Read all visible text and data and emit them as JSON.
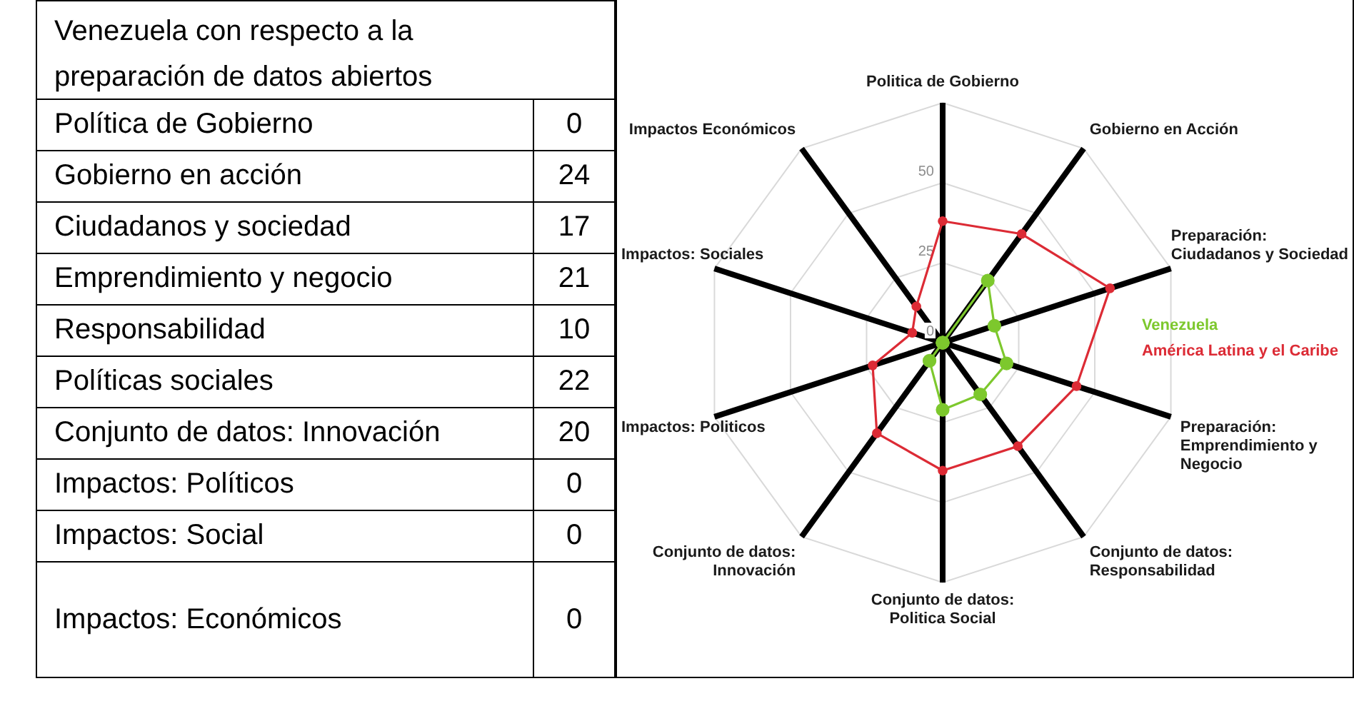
{
  "chart_data": [
    {
      "type": "other",
      "title": "Venezuela con respecto a la preparación de datos abiertos",
      "categories": [
        "Política de Gobierno",
        "Gobierno en acción",
        "Ciudadanos y sociedad",
        "Emprendimiento y negocio",
        "Responsabilidad",
        "Políticas sociales",
        "Conjunto de datos: Innovación",
        "Impactos: Políticos",
        "Impactos: Social",
        "Impactos: Económicos"
      ],
      "values": [
        0,
        24,
        17,
        21,
        10,
        22,
        20,
        0,
        0,
        0
      ],
      "data_labels": true
    },
    {
      "type": "radar",
      "categories": [
        "Politica de Gobierno",
        "Gobierno en Acción",
        "Preparación: Ciudadanos y Sociedad",
        "Preparación: Emprendimiento y Negocio",
        "Conjunto de datos: Responsabilidad",
        "Conjunto de datos: Politica Social",
        "Conjunto de datos: Innovación",
        "Impactos: Politicos",
        "Impactos: Sociales",
        "Impactos Económicos"
      ],
      "series": [
        {
          "name": "Venezuela",
          "color": "#7dc82d",
          "values": [
            0,
            24,
            17,
            21,
            20,
            21,
            7,
            0,
            0,
            0
          ]
        },
        {
          "name": "América Latina y el Caribe",
          "color": "#dc2b35",
          "values": [
            38,
            42,
            55,
            44,
            40,
            40,
            35,
            23,
            10,
            14
          ]
        }
      ],
      "ylim": [
        0,
        75
      ],
      "yticks": [
        0,
        25,
        50
      ],
      "grid": true,
      "legend": "right",
      "marker": "circle"
    }
  ]
}
